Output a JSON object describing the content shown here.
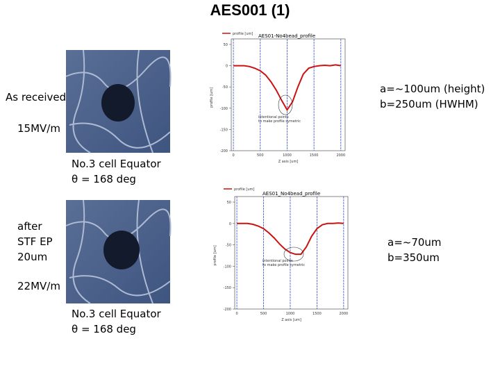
{
  "title": "AES001  (1)",
  "rows": [
    {
      "label_lines": [
        "As received"
      ],
      "field": "15MV/m",
      "caption_lines": [
        "No.3 cell Equator",
        "θ = 168 deg"
      ],
      "result_lines": [
        "a=~100um (height)",
        "b=250um (HWHM)"
      ]
    },
    {
      "label_lines": [
        "after",
        "STF EP",
        "20um"
      ],
      "field": "22MV/m",
      "caption_lines": [
        "No.3 cell Equator",
        "θ = 168 deg"
      ],
      "result_lines": [
        "a=~70um",
        "b=350um"
      ]
    }
  ],
  "chart_data": [
    {
      "type": "line",
      "title": "AES01-No4bead_profile",
      "x_label": "Z axis [um]",
      "y_label": "profile [um]",
      "annotation_lines": [
        "intentional points",
        "to make profile symetric"
      ],
      "x": [
        0,
        100,
        200,
        300,
        400,
        500,
        600,
        700,
        800,
        900,
        1000,
        1100,
        1200,
        1300,
        1400,
        1500,
        1600,
        1700,
        1800,
        1900,
        2000
      ],
      "series": [
        {
          "name": "profile [um]",
          "color": "#cc1111",
          "values": [
            0,
            0,
            0,
            -2,
            -6,
            -12,
            -22,
            -38,
            -58,
            -82,
            -104,
            -85,
            -50,
            -20,
            -6,
            -2,
            0,
            1,
            0,
            2,
            0
          ]
        }
      ],
      "xlim": [
        -40,
        2080
      ],
      "ylim": [
        -200,
        50
      ],
      "xticks": [
        0,
        500,
        1000,
        1500,
        2000
      ],
      "yticks": [
        -200,
        -150,
        -100,
        -50,
        0,
        50
      ],
      "grid": true
    },
    {
      "type": "line",
      "title": "AES01_No4bead_profile",
      "x_label": "Z axis [um]",
      "y_label": "profile [um]",
      "annotation_lines": [
        "intentional points",
        "to make profile symetric"
      ],
      "x": [
        0,
        100,
        200,
        300,
        400,
        500,
        600,
        700,
        800,
        900,
        1000,
        1100,
        1200,
        1300,
        1400,
        1500,
        1600,
        1700,
        1800,
        1900,
        2000
      ],
      "series": [
        {
          "name": "profile [um]",
          "color": "#cc1111",
          "values": [
            0,
            0,
            0,
            -2,
            -6,
            -12,
            -22,
            -34,
            -48,
            -60,
            -68,
            -72,
            -72,
            -55,
            -30,
            -12,
            -3,
            0,
            0,
            1,
            0
          ]
        }
      ],
      "xlim": [
        -40,
        2080
      ],
      "ylim": [
        -200,
        50
      ],
      "xticks": [
        0,
        500,
        1000,
        1500,
        2000
      ],
      "yticks": [
        -200,
        -150,
        -100,
        -50,
        0,
        50
      ],
      "grid": true
    }
  ]
}
